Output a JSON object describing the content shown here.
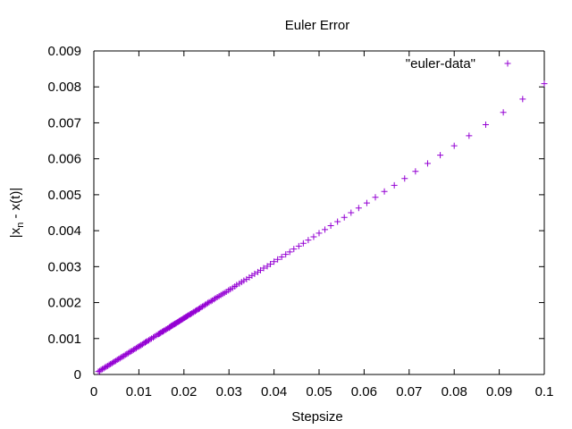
{
  "chart_data": {
    "type": "scatter",
    "title": "Euler Error",
    "xlabel": "Stepsize",
    "ylabel_main": "|x",
    "ylabel_sub": "n",
    "ylabel_rest": " - x(t)|",
    "xlim": [
      0,
      0.1
    ],
    "ylim": [
      0,
      0.009
    ],
    "xticks": [
      0,
      0.01,
      0.02,
      0.03,
      0.04,
      0.05,
      0.06,
      0.07,
      0.08,
      0.09,
      0.1
    ],
    "xtick_labels": [
      "0",
      "0.01",
      "0.02",
      "0.03",
      "0.04",
      "0.05",
      "0.06",
      "0.07",
      "0.08",
      "0.09",
      "0.1"
    ],
    "yticks": [
      0,
      0.001,
      0.002,
      0.003,
      0.004,
      0.005,
      0.006,
      0.007,
      0.008,
      0.009
    ],
    "ytick_labels": [
      "0",
      "0.001",
      "0.002",
      "0.003",
      "0.004",
      "0.005",
      "0.006",
      "0.007",
      "0.008",
      "0.009"
    ],
    "grid": false,
    "legend_position": "top-right",
    "series": [
      {
        "name": "\"euler-data\"",
        "color": "#9400d3",
        "marker": "plus",
        "x": [
          0.1,
          0.0952,
          0.0909,
          0.087,
          0.0833,
          0.08,
          0.0769,
          0.0741,
          0.0714,
          0.069,
          0.0667,
          0.0645,
          0.0625,
          0.0606,
          0.0588,
          0.0571,
          0.0556,
          0.0541,
          0.0526,
          0.0513,
          0.05,
          0.0488,
          0.0476,
          0.0465,
          0.0455,
          0.0444,
          0.0435,
          0.0426,
          0.0417,
          0.0408,
          0.04,
          0.0392,
          0.0385,
          0.0377,
          0.037,
          0.0364,
          0.0357,
          0.0351,
          0.0345,
          0.0339,
          0.0333,
          0.0328,
          0.0323,
          0.0317,
          0.0313,
          0.0308,
          0.0303,
          0.0299,
          0.0294,
          0.029,
          0.0286,
          0.0282,
          0.0278,
          0.0274,
          0.027,
          0.0267,
          0.0263,
          0.026,
          0.0256,
          0.0253,
          0.025,
          0.0247,
          0.0244,
          0.0241,
          0.0238,
          0.0235,
          0.0233,
          0.023,
          0.0227,
          0.0225,
          0.0222,
          0.022,
          0.0217,
          0.0215,
          0.0213,
          0.021,
          0.0208,
          0.0206,
          0.0204,
          0.0202,
          0.02,
          0.0198,
          0.0196,
          0.0194,
          0.0192,
          0.019,
          0.0189,
          0.0187,
          0.0185,
          0.0183,
          0.0182,
          0.018,
          0.0179,
          0.0177,
          0.0175,
          0.0174,
          0.0172,
          0.0171,
          0.0169,
          0.0168,
          0.0167,
          0.0164,
          0.0161,
          0.0159,
          0.0156,
          0.0154,
          0.0152,
          0.0149,
          0.0147,
          0.0145,
          0.0143,
          0.0139,
          0.0135,
          0.0132,
          0.0128,
          0.0125,
          0.0122,
          0.0119,
          0.0116,
          0.0114,
          0.0111,
          0.0108,
          0.0105,
          0.0103,
          0.01,
          0.0097,
          0.0094,
          0.0091,
          0.0088,
          0.0085,
          0.0082,
          0.0079,
          0.0076,
          0.0073,
          0.007,
          0.0067,
          0.0064,
          0.0061,
          0.0058,
          0.0055,
          0.0052,
          0.0049,
          0.0046,
          0.0043,
          0.004,
          0.0037,
          0.0034,
          0.0031,
          0.0028,
          0.0025,
          0.0022,
          0.0019,
          0.0016,
          0.0013,
          0.001
        ],
        "y": [
          0.00809,
          0.00766,
          0.00729,
          0.00695,
          0.00664,
          0.00636,
          0.0061,
          0.00587,
          0.00565,
          0.00545,
          0.00526,
          0.00509,
          0.00493,
          0.00477,
          0.00463,
          0.0045,
          0.00437,
          0.00425,
          0.00414,
          0.00403,
          0.00393,
          0.00383,
          0.00374,
          0.00365,
          0.00357,
          0.00349,
          0.00341,
          0.00334,
          0.00327,
          0.0032,
          0.00314,
          0.00307,
          0.00301,
          0.00296,
          0.0029,
          0.00285,
          0.0028,
          0.00275,
          0.0027,
          0.00265,
          0.00261,
          0.00257,
          0.00253,
          0.00249,
          0.00245,
          0.00241,
          0.00237,
          0.00234,
          0.0023,
          0.00227,
          0.00224,
          0.00221,
          0.00218,
          0.00215,
          0.00212,
          0.00209,
          0.00206,
          0.00204,
          0.00201,
          0.00199,
          0.00196,
          0.00194,
          0.00191,
          0.00189,
          0.00187,
          0.00184,
          0.00182,
          0.0018,
          0.00178,
          0.00176,
          0.00174,
          0.00172,
          0.0017,
          0.00168,
          0.00167,
          0.00165,
          0.00163,
          0.00161,
          0.0016,
          0.00158,
          0.00157,
          0.00155,
          0.00153,
          0.00152,
          0.0015,
          0.00149,
          0.00148,
          0.00146,
          0.00145,
          0.00143,
          0.00142,
          0.00141,
          0.0014,
          0.00139,
          0.00137,
          0.00136,
          0.00135,
          0.00134,
          0.00132,
          0.00131,
          0.0013,
          0.00128,
          0.00126,
          0.00124,
          0.00122,
          0.0012,
          0.00119,
          0.00117,
          0.00115,
          0.00113,
          0.00112,
          0.00109,
          0.00106,
          0.00103,
          0.001,
          0.00098,
          0.00095,
          0.00093,
          0.00091,
          0.00089,
          0.00087,
          0.00084,
          0.00082,
          0.0008,
          0.00078,
          0.00076,
          0.00073,
          0.00071,
          0.00069,
          0.00066,
          0.00064,
          0.00062,
          0.00059,
          0.00057,
          0.00055,
          0.00052,
          0.0005,
          0.00048,
          0.00045,
          0.00043,
          0.00041,
          0.00038,
          0.00036,
          0.00034,
          0.00031,
          0.00029,
          0.00027,
          0.00024,
          0.00022,
          0.0002,
          0.00017,
          0.00015,
          0.00013,
          0.0001,
          8e-05
        ]
      }
    ]
  }
}
